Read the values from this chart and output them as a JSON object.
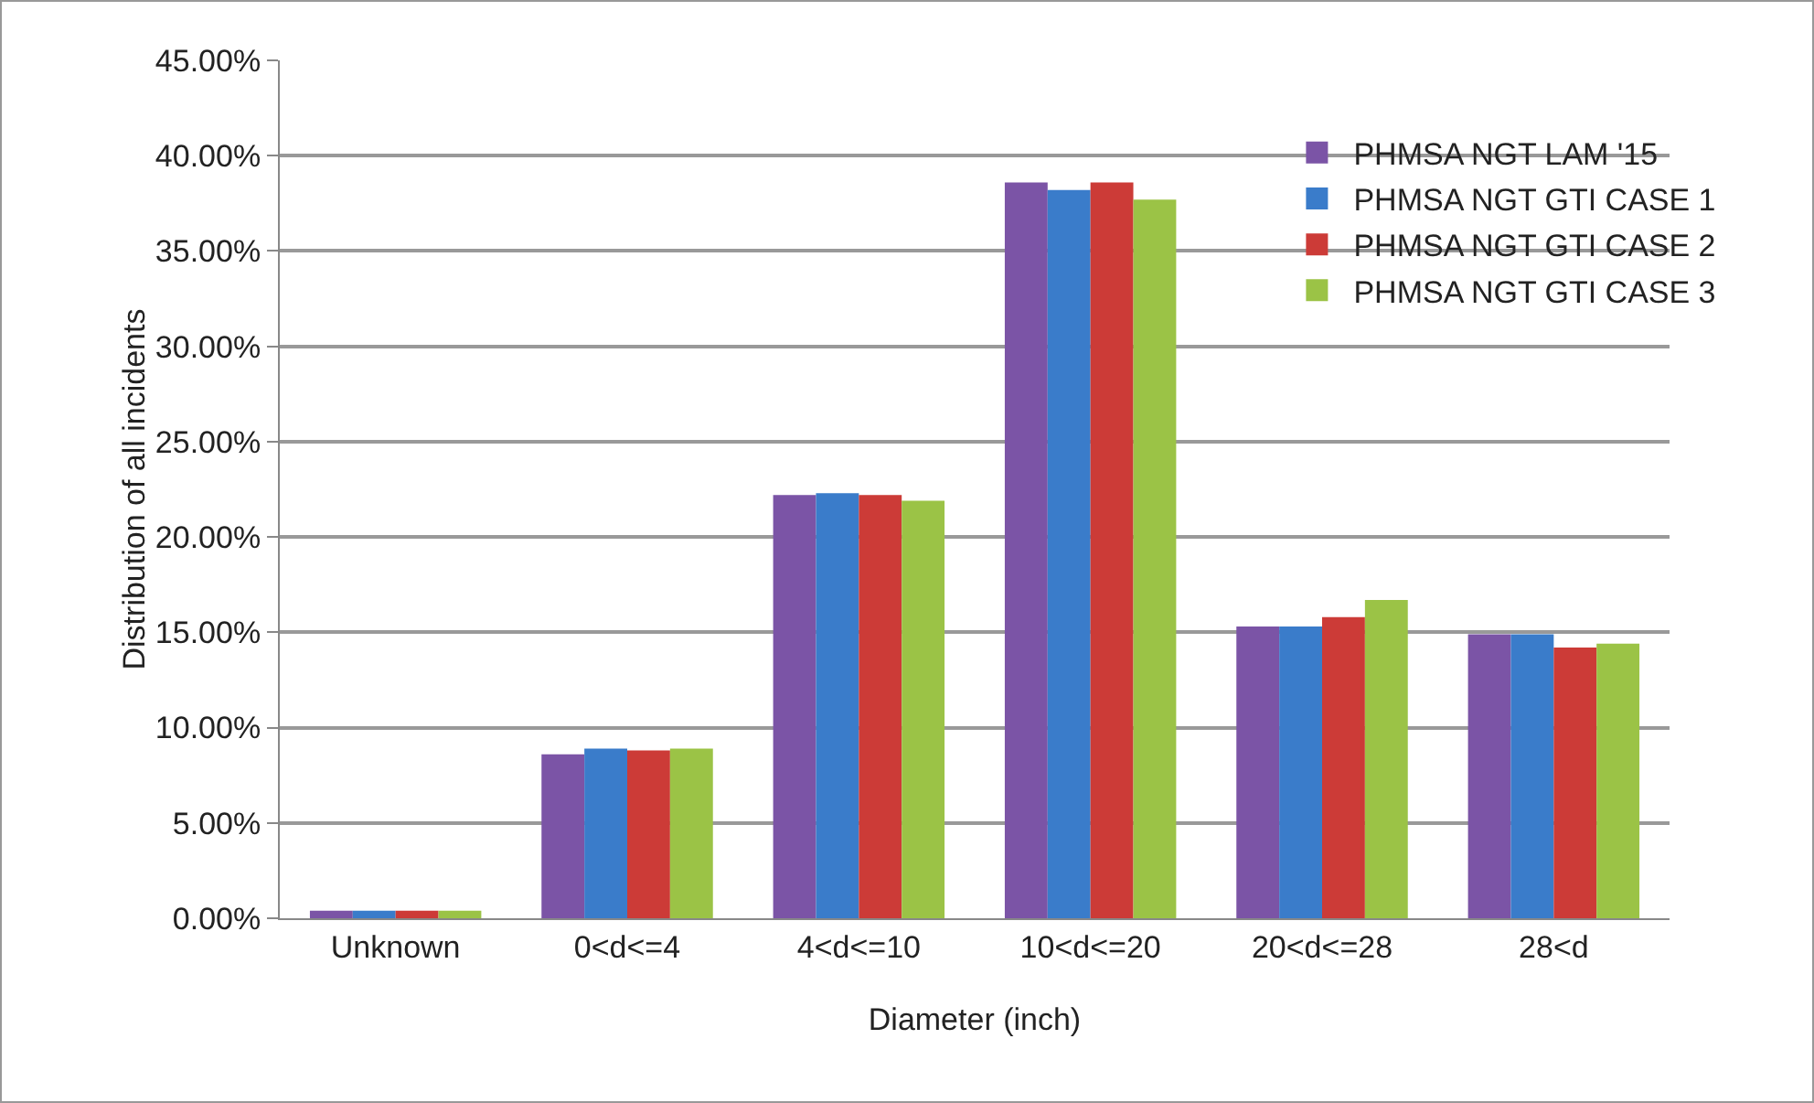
{
  "chart_data": {
    "type": "bar",
    "xlabel": "Diameter (inch)",
    "ylabel": "Distribution of all incidents",
    "categories": [
      "Unknown",
      "0<d<=4",
      "4<d<=10",
      "10<d<=20",
      "20<d<=28",
      "28<d"
    ],
    "series": [
      {
        "name": "PHMSA NGT LAM '15",
        "color": "#7b54a6",
        "values": [
          0.4,
          8.6,
          22.2,
          38.6,
          15.3,
          14.9
        ]
      },
      {
        "name": "PHMSA NGT GTI CASE 1",
        "color": "#3a7cca",
        "values": [
          0.4,
          8.9,
          22.3,
          38.2,
          15.3,
          14.9
        ]
      },
      {
        "name": "PHMSA NGT GTI CASE 2",
        "color": "#cc3b37",
        "values": [
          0.4,
          8.8,
          22.2,
          38.6,
          15.8,
          14.2
        ]
      },
      {
        "name": "PHMSA NGT GTI CASE 3",
        "color": "#9bc346",
        "values": [
          0.4,
          8.9,
          21.9,
          37.7,
          16.7,
          14.4
        ]
      }
    ],
    "ylim": [
      0,
      45
    ],
    "yticks": [
      {
        "value": 0,
        "label": "0.00%"
      },
      {
        "value": 5,
        "label": "5.00%"
      },
      {
        "value": 10,
        "label": "10.00%"
      },
      {
        "value": 15,
        "label": "15.00%"
      },
      {
        "value": 20,
        "label": "20.00%"
      },
      {
        "value": 25,
        "label": "25.00%"
      },
      {
        "value": 30,
        "label": "30.00%"
      },
      {
        "value": 35,
        "label": "35.00%"
      },
      {
        "value": 40,
        "label": "40.00%"
      },
      {
        "value": 45,
        "label": "45.00%"
      }
    ],
    "grid": "y",
    "legend": "top right"
  }
}
